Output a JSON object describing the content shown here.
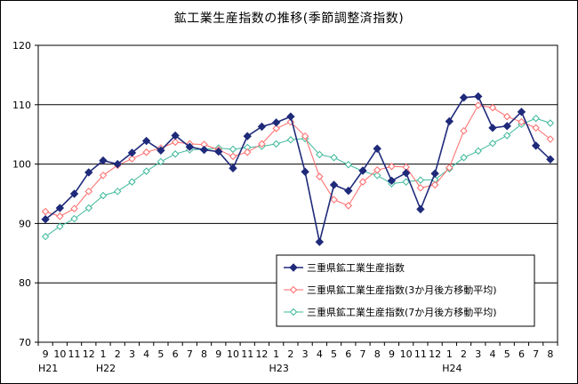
{
  "chart_data": {
    "type": "line",
    "title": "鉱工業生産指数の推移(季節調整済指数)",
    "ylim": [
      70,
      120
    ],
    "yticks": [
      70,
      80,
      90,
      100,
      110,
      120
    ],
    "grid": "horizontal",
    "legend_position": "bottom-right",
    "x": [
      "9",
      "10",
      "11",
      "12",
      "1",
      "2",
      "3",
      "4",
      "5",
      "6",
      "7",
      "8",
      "9",
      "10",
      "11",
      "12",
      "1",
      "2",
      "3",
      "4",
      "5",
      "6",
      "7",
      "8",
      "9",
      "10",
      "11",
      "12",
      "1",
      "2",
      "3",
      "4",
      "5",
      "6",
      "7",
      "8"
    ],
    "year_labels": [
      {
        "label": "H21",
        "index": 0
      },
      {
        "label": "H22",
        "index": 4
      },
      {
        "label": "H23",
        "index": 16
      },
      {
        "label": "H24",
        "index": 28
      }
    ],
    "series": [
      {
        "name": "三重県鉱工業生産指数",
        "color": "#1f2a7a",
        "marker": "diamond-filled",
        "values": [
          90.7,
          92.6,
          95.0,
          98.6,
          100.6,
          100.0,
          101.9,
          103.9,
          102.3,
          104.8,
          102.9,
          102.4,
          102.1,
          99.3,
          104.7,
          106.3,
          107.0,
          108.0,
          98.7,
          86.9,
          96.5,
          95.5,
          98.9,
          102.6,
          97.2,
          98.5,
          92.4,
          98.4,
          107.2,
          111.2,
          111.4,
          106.1,
          106.4,
          108.8,
          103.1,
          100.8
        ]
      },
      {
        "name": "三重県鉱工業生産指数(3か月後方移動平均)",
        "color": "#ff6a6a",
        "marker": "diamond-open",
        "values": [
          92.0,
          91.2,
          92.5,
          95.4,
          98.1,
          99.8,
          100.9,
          102.0,
          102.7,
          103.7,
          103.4,
          103.3,
          102.4,
          101.3,
          102.0,
          103.4,
          106.0,
          107.1,
          104.7,
          97.9,
          94.0,
          93.0,
          97.0,
          99.0,
          99.6,
          99.5,
          96.0,
          96.5,
          99.4,
          105.6,
          109.9,
          109.5,
          108.0,
          107.1,
          106.1,
          104.2
        ]
      },
      {
        "name": "三重県鉱工業生産指数(7か月後方移動平均)",
        "color": "#3db89a",
        "marker": "diamond-open",
        "values": [
          87.8,
          89.5,
          90.8,
          92.6,
          94.7,
          95.4,
          97.0,
          98.8,
          100.4,
          101.7,
          102.4,
          102.5,
          102.7,
          102.5,
          102.8,
          103.0,
          103.4,
          104.1,
          104.3,
          101.6,
          101.1,
          99.9,
          98.8,
          98.1,
          96.7,
          97.0,
          97.3,
          97.4,
          99.2,
          101.1,
          102.2,
          103.5,
          104.8,
          106.7,
          107.7,
          106.9
        ]
      }
    ]
  }
}
